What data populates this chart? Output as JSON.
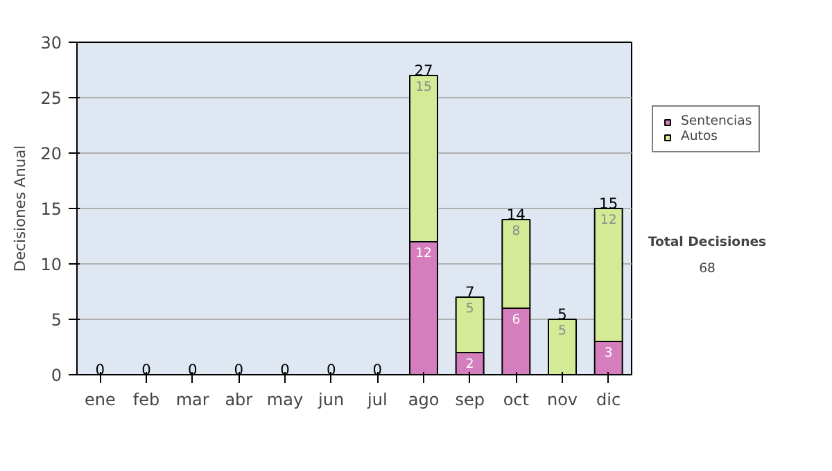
{
  "chart_data": {
    "type": "bar",
    "stacked": true,
    "ylabel": "Decisiones Anual",
    "categories": [
      "ene",
      "feb",
      "mar",
      "abr",
      "may",
      "jun",
      "jul",
      "ago",
      "sep",
      "oct",
      "nov",
      "dic"
    ],
    "series": [
      {
        "name": "Sentencias",
        "color": "#d47ebe",
        "values": [
          0,
          0,
          0,
          0,
          0,
          0,
          0,
          12,
          2,
          6,
          0,
          3
        ],
        "value_labels": [
          null,
          null,
          null,
          null,
          null,
          null,
          null,
          "12",
          "2",
          "6",
          null,
          "3"
        ]
      },
      {
        "name": "Autos",
        "color": "#d5ea96",
        "values": [
          0,
          0,
          0,
          0,
          0,
          0,
          0,
          15,
          5,
          8,
          5,
          12
        ],
        "value_labels": [
          null,
          null,
          null,
          null,
          null,
          null,
          null,
          "15",
          "5",
          "8",
          "5",
          "12"
        ]
      }
    ],
    "totals": [
      "0",
      "0",
      "0",
      "0",
      "0",
      "0",
      "0",
      "27",
      "7",
      "14",
      "5",
      "15"
    ],
    "ylim": [
      0,
      30
    ],
    "yticks": [
      0,
      5,
      10,
      15,
      20,
      25,
      30
    ],
    "grid": "y",
    "legend": "right",
    "annotations": [
      "Total Decisiones",
      "68"
    ]
  }
}
